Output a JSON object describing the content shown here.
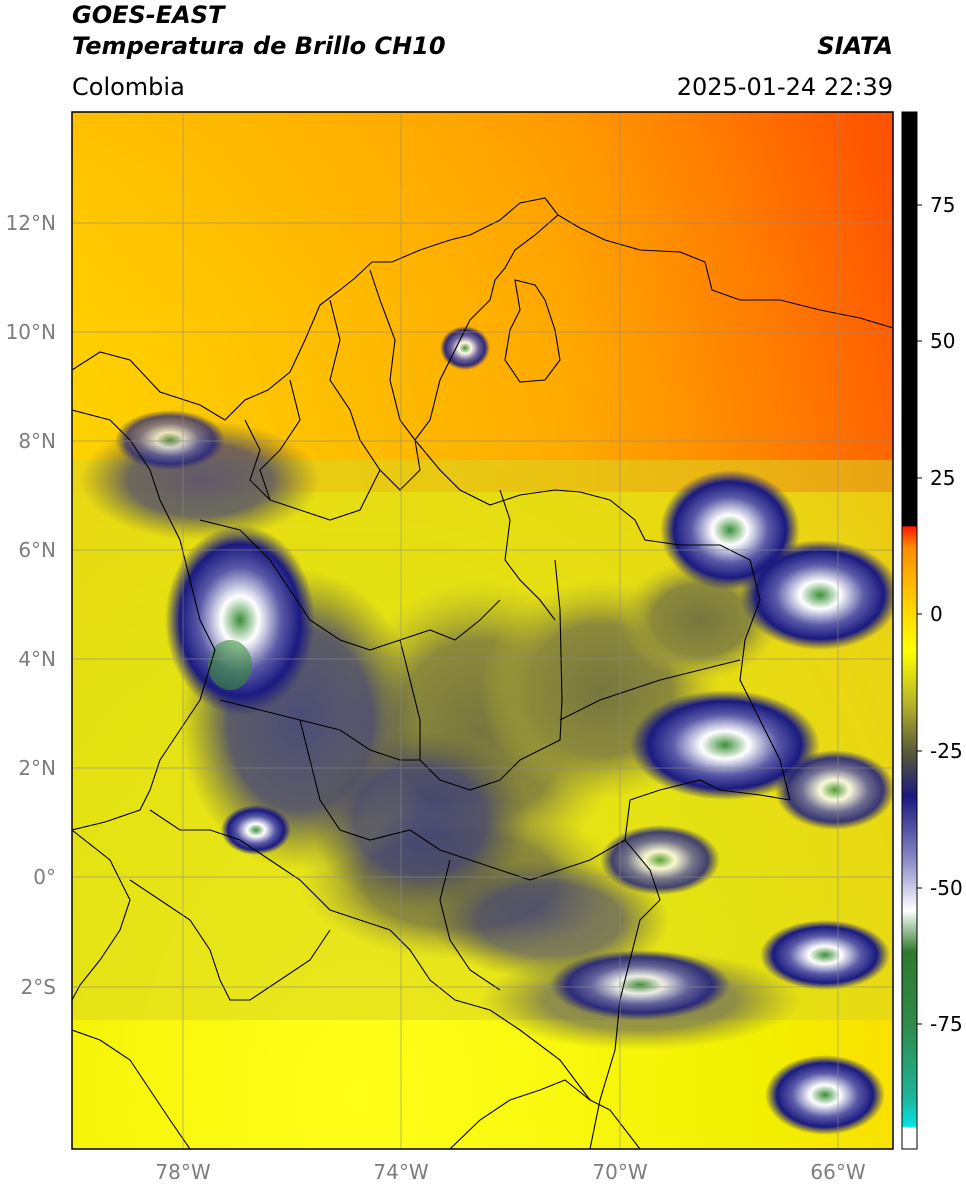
{
  "header": {
    "satellite": "GOES-EAST",
    "product": "Temperatura de Brillo CH10",
    "brand": "SIATA",
    "region": "Colombia",
    "timestamp": "2025-01-24 22:39"
  },
  "map": {
    "lat_labels": [
      "12°N",
      "10°N",
      "8°N",
      "6°N",
      "4°N",
      "2°N",
      "0°",
      "2°S"
    ],
    "lon_labels": [
      "78°W",
      "74°W",
      "70°W",
      "66°W"
    ],
    "grid": true
  },
  "colorbar": {
    "ticks": [
      "75",
      "50",
      "25",
      "0",
      "-25",
      "-50",
      "-75"
    ],
    "colors": {
      "black": "#000000",
      "red": "#ff1a00",
      "orange": "#ff9900",
      "yellow": "#ffff00",
      "olive": "#6e6e3c",
      "navy": "#1a1a80",
      "white": "#ffffff",
      "green": "#2e8b2e",
      "cyan": "#00e5e5"
    }
  }
}
